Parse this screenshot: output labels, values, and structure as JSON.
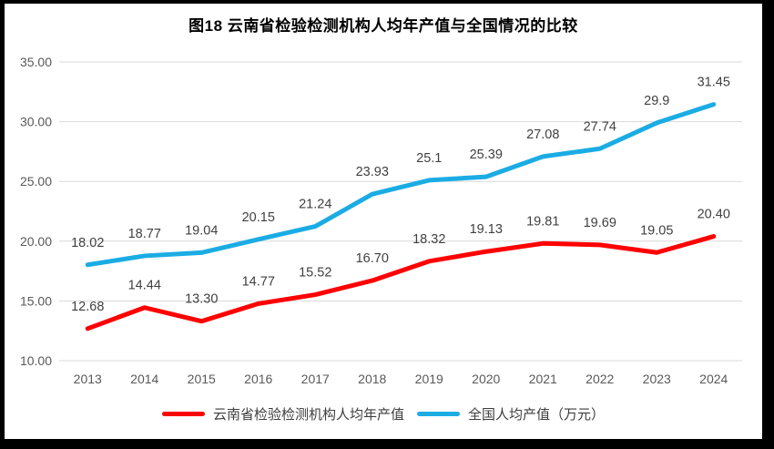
{
  "title": "图18 云南省检验检测机构人均年产值与全国情况的比较",
  "legend": [
    {
      "label": "云南省检验检测机构人均年产值",
      "color": "#FE0000"
    },
    {
      "label": "全国人均产值（万元）",
      "color": "#1BACE4"
    }
  ],
  "colors": {
    "yunnan_line": "#FE0000",
    "national_line": "#1BACE4",
    "gridline": "#D9D9D9",
    "axis_tick_text": "#595959",
    "data_label_text": "#404040",
    "title_text": "#000000",
    "frame_border": "#000000",
    "background": "#FFFFFF"
  },
  "chart_data": {
    "type": "line",
    "title": "图18 云南省检验检测机构人均年产值与全国情况的比较",
    "categories": [
      "2013",
      "2014",
      "2015",
      "2016",
      "2017",
      "2018",
      "2019",
      "2020",
      "2021",
      "2022",
      "2023",
      "2024"
    ],
    "series": [
      {
        "name": "云南省检验检测机构人均年产值",
        "color": "#FE0000",
        "values": [
          12.68,
          14.44,
          13.3,
          14.77,
          15.52,
          16.7,
          18.32,
          19.13,
          19.81,
          19.69,
          19.05,
          20.4
        ],
        "labels": [
          "12.68",
          "14.44",
          "13.30",
          "14.77",
          "15.52",
          "16.70",
          "18.32",
          "19.13",
          "19.81",
          "19.69",
          "19.05",
          "20.40"
        ]
      },
      {
        "name": "全国人均产值（万元）",
        "color": "#1BACE4",
        "values": [
          18.02,
          18.77,
          19.04,
          20.15,
          21.24,
          23.93,
          25.1,
          25.39,
          27.08,
          27.74,
          29.9,
          31.45
        ],
        "labels": [
          "18.02",
          "18.77",
          "19.04",
          "20.15",
          "21.24",
          "23.93",
          "25.1",
          "25.39",
          "27.08",
          "27.74",
          "29.9",
          "31.45"
        ]
      }
    ],
    "ylim": [
      10,
      35
    ],
    "ytick_step": 5,
    "ytick_labels": [
      "10.00",
      "15.00",
      "20.00",
      "25.00",
      "30.00",
      "35.00"
    ],
    "xlabel": "",
    "ylabel": "",
    "grid": true,
    "legend_position": "bottom"
  }
}
